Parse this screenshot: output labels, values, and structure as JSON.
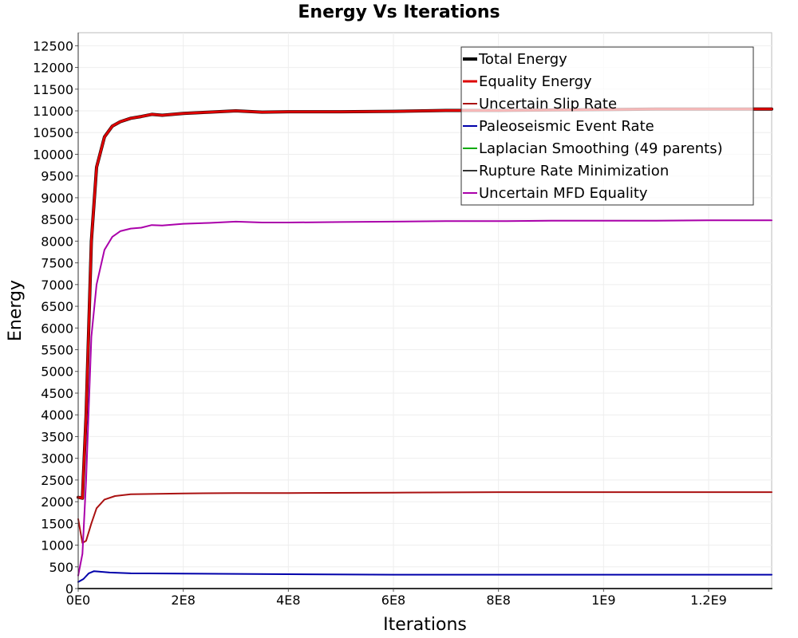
{
  "chart_data": {
    "type": "line",
    "title": "Energy Vs Iterations",
    "xlabel": "Iterations",
    "ylabel": "Energy",
    "xlim": [
      0,
      1320000000
    ],
    "ylim": [
      0,
      12800
    ],
    "grid": true,
    "legend_position": "top-right",
    "x_ticks": [
      {
        "value": 0,
        "label": "0E0"
      },
      {
        "value": 200000000,
        "label": "2E8"
      },
      {
        "value": 400000000,
        "label": "4E8"
      },
      {
        "value": 600000000,
        "label": "6E8"
      },
      {
        "value": 800000000,
        "label": "8E8"
      },
      {
        "value": 1000000000,
        "label": "1E9"
      },
      {
        "value": 1200000000,
        "label": "1.2E9"
      }
    ],
    "y_ticks": [
      0,
      500,
      1000,
      1500,
      2000,
      2500,
      3000,
      3500,
      4000,
      4500,
      5000,
      5500,
      6000,
      6500,
      7000,
      7500,
      8000,
      8500,
      9000,
      9500,
      10000,
      10500,
      11000,
      11500,
      12000,
      12500
    ],
    "series": [
      {
        "name": "Total Energy",
        "color": "#000000",
        "width": 4,
        "legend_width": 4,
        "points": [
          [
            0,
            2100
          ],
          [
            8000000,
            2080
          ],
          [
            15000000,
            4000
          ],
          [
            25000000,
            8000
          ],
          [
            35000000,
            9700
          ],
          [
            50000000,
            10400
          ],
          [
            65000000,
            10650
          ],
          [
            80000000,
            10750
          ],
          [
            100000000,
            10830
          ],
          [
            120000000,
            10870
          ],
          [
            140000000,
            10920
          ],
          [
            160000000,
            10900
          ],
          [
            200000000,
            10940
          ],
          [
            250000000,
            10970
          ],
          [
            300000000,
            11000
          ],
          [
            350000000,
            10970
          ],
          [
            400000000,
            10980
          ],
          [
            500000000,
            10980
          ],
          [
            600000000,
            10990
          ],
          [
            700000000,
            11010
          ],
          [
            800000000,
            11010
          ],
          [
            900000000,
            11020
          ],
          [
            1000000000,
            11030
          ],
          [
            1100000000,
            11040
          ],
          [
            1200000000,
            11040
          ],
          [
            1320000000,
            11040
          ]
        ]
      },
      {
        "name": "Equality Energy",
        "color": "#dd0000",
        "width": 3,
        "legend_width": 3,
        "points": [
          [
            0,
            2100
          ],
          [
            8000000,
            2080
          ],
          [
            15000000,
            4000
          ],
          [
            25000000,
            8000
          ],
          [
            35000000,
            9700
          ],
          [
            50000000,
            10400
          ],
          [
            65000000,
            10650
          ],
          [
            80000000,
            10750
          ],
          [
            100000000,
            10830
          ],
          [
            120000000,
            10870
          ],
          [
            140000000,
            10920
          ],
          [
            160000000,
            10900
          ],
          [
            200000000,
            10940
          ],
          [
            250000000,
            10970
          ],
          [
            300000000,
            11000
          ],
          [
            350000000,
            10970
          ],
          [
            400000000,
            10980
          ],
          [
            500000000,
            10980
          ],
          [
            600000000,
            10990
          ],
          [
            700000000,
            11010
          ],
          [
            800000000,
            11010
          ],
          [
            900000000,
            11020
          ],
          [
            1000000000,
            11030
          ],
          [
            1100000000,
            11040
          ],
          [
            1200000000,
            11040
          ],
          [
            1320000000,
            11040
          ]
        ]
      },
      {
        "name": "Uncertain Slip Rate",
        "color": "#aa1111",
        "width": 2,
        "legend_width": 2,
        "points": [
          [
            0,
            1600
          ],
          [
            8000000,
            1050
          ],
          [
            15000000,
            1100
          ],
          [
            25000000,
            1500
          ],
          [
            35000000,
            1850
          ],
          [
            50000000,
            2050
          ],
          [
            70000000,
            2130
          ],
          [
            100000000,
            2170
          ],
          [
            150000000,
            2180
          ],
          [
            200000000,
            2190
          ],
          [
            300000000,
            2200
          ],
          [
            400000000,
            2200
          ],
          [
            600000000,
            2210
          ],
          [
            800000000,
            2220
          ],
          [
            1000000000,
            2220
          ],
          [
            1320000000,
            2220
          ]
        ]
      },
      {
        "name": "Paleoseismic Event Rate",
        "color": "#0000aa",
        "width": 2,
        "legend_width": 2,
        "points": [
          [
            0,
            150
          ],
          [
            10000000,
            220
          ],
          [
            20000000,
            350
          ],
          [
            30000000,
            400
          ],
          [
            40000000,
            390
          ],
          [
            60000000,
            370
          ],
          [
            100000000,
            350
          ],
          [
            200000000,
            345
          ],
          [
            400000000,
            330
          ],
          [
            600000000,
            320
          ],
          [
            800000000,
            320
          ],
          [
            1000000000,
            320
          ],
          [
            1320000000,
            320
          ]
        ]
      },
      {
        "name": "Laplacian Smoothing (49 parents)",
        "color": "#00aa00",
        "width": 2,
        "legend_width": 2,
        "points": [
          [
            0,
            0
          ],
          [
            1320000000,
            0
          ]
        ]
      },
      {
        "name": "Rupture Rate Minimization",
        "color": "#333333",
        "width": 2,
        "legend_width": 2,
        "points": [
          [
            0,
            0
          ],
          [
            1320000000,
            0
          ]
        ]
      },
      {
        "name": "Uncertain MFD Equality",
        "color": "#aa00aa",
        "width": 2,
        "legend_width": 2,
        "points": [
          [
            0,
            300
          ],
          [
            8000000,
            800
          ],
          [
            15000000,
            2500
          ],
          [
            25000000,
            5800
          ],
          [
            35000000,
            7000
          ],
          [
            50000000,
            7800
          ],
          [
            65000000,
            8100
          ],
          [
            80000000,
            8230
          ],
          [
            100000000,
            8290
          ],
          [
            120000000,
            8310
          ],
          [
            140000000,
            8370
          ],
          [
            160000000,
            8360
          ],
          [
            200000000,
            8400
          ],
          [
            250000000,
            8420
          ],
          [
            300000000,
            8450
          ],
          [
            350000000,
            8430
          ],
          [
            400000000,
            8430
          ],
          [
            500000000,
            8440
          ],
          [
            600000000,
            8450
          ],
          [
            700000000,
            8460
          ],
          [
            800000000,
            8460
          ],
          [
            900000000,
            8470
          ],
          [
            1000000000,
            8470
          ],
          [
            1100000000,
            8470
          ],
          [
            1200000000,
            8480
          ],
          [
            1320000000,
            8480
          ]
        ]
      }
    ]
  }
}
